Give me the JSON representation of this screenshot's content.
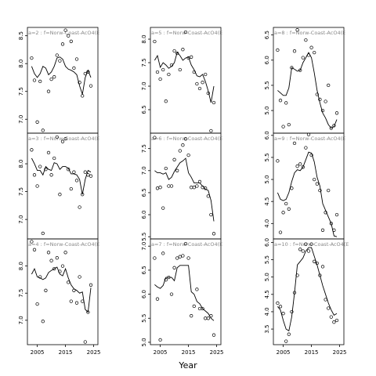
{
  "chart_data": {
    "type": "scatter",
    "figure_xlabel": "Year",
    "x_ticks": [
      2005,
      2015,
      2025
    ],
    "xlim": [
      2001.5,
      2026.5
    ],
    "panels": [
      {
        "label": "a=2 : f=Norw-Coast-AcO4(E",
        "ylim": [
          6.75,
          8.65
        ],
        "yticks": [
          7.0,
          7.5,
          8.0,
          8.5
        ],
        "points": {
          "x": [
            2003,
            2004,
            2005,
            2006,
            2007,
            2009,
            2010,
            2011,
            2012,
            2013,
            2014,
            2015,
            2016,
            2017,
            2018,
            2019,
            2020,
            2021,
            2022,
            2023,
            2024
          ],
          "y": [
            8.1,
            7.7,
            6.95,
            7.68,
            6.8,
            7.5,
            7.72,
            7.76,
            8.15,
            8.05,
            8.35,
            8.6,
            8.5,
            8.4,
            7.92,
            8.08,
            7.66,
            7.42,
            7.82,
            7.85,
            7.6
          ]
        },
        "fit": {
          "x": [
            2003,
            2004,
            2005,
            2006,
            2007,
            2008,
            2009,
            2010,
            2011,
            2012,
            2013,
            2014,
            2015,
            2016,
            2017,
            2018,
            2019,
            2020,
            2021,
            2022,
            2023,
            2024
          ],
          "y": [
            7.95,
            7.82,
            7.75,
            7.82,
            7.95,
            7.92,
            7.8,
            7.85,
            7.95,
            8.1,
            8.12,
            8.08,
            7.95,
            7.9,
            7.88,
            7.85,
            7.8,
            7.6,
            7.45,
            7.75,
            7.88,
            7.75
          ]
        }
      },
      {
        "label": "a=5 : f=Norw-Coast-AcO4(E",
        "ylim": [
          6.0,
          8.25
        ],
        "yticks": [
          6.5,
          7.0,
          7.5,
          8.0
        ],
        "points": {
          "x": [
            2003,
            2004,
            2005,
            2006,
            2007,
            2008,
            2009,
            2010,
            2011,
            2012,
            2013,
            2014,
            2015,
            2016,
            2017,
            2018,
            2019,
            2020,
            2021,
            2022,
            2023,
            2024
          ],
          "y": [
            7.95,
            7.3,
            7.15,
            7.35,
            6.68,
            7.25,
            7.45,
            7.75,
            7.7,
            7.35,
            7.78,
            8.15,
            7.6,
            7.62,
            7.3,
            7.05,
            6.95,
            7.08,
            7.25,
            6.85,
            6.05,
            6.65
          ]
        },
        "fit": {
          "x": [
            2003,
            2004,
            2005,
            2006,
            2007,
            2008,
            2009,
            2010,
            2011,
            2012,
            2013,
            2014,
            2015,
            2016,
            2017,
            2018,
            2019,
            2020,
            2021,
            2022,
            2023,
            2024
          ],
          "y": [
            7.55,
            7.65,
            7.4,
            7.5,
            7.45,
            7.38,
            7.42,
            7.5,
            7.72,
            7.65,
            7.55,
            7.6,
            7.62,
            7.45,
            7.35,
            7.22,
            7.2,
            7.25,
            7.1,
            6.9,
            6.65,
            7.0
          ]
        }
      },
      {
        "label": "a=8 : f=Norw-Coast-AcO4(E",
        "ylim": [
          4.55,
          6.65
        ],
        "yticks": [
          5.0,
          5.5,
          6.0,
          6.5
        ],
        "points": {
          "x": [
            2003,
            2004,
            2005,
            2006,
            2007,
            2008,
            2009,
            2010,
            2011,
            2012,
            2013,
            2014,
            2015,
            2016,
            2017,
            2018,
            2019,
            2020,
            2021,
            2022,
            2023,
            2024
          ],
          "y": [
            6.2,
            5.2,
            4.68,
            5.15,
            4.72,
            5.85,
            6.18,
            6.6,
            5.8,
            6.05,
            6.4,
            6.1,
            6.25,
            6.15,
            5.32,
            5.22,
            5.0,
            5.18,
            5.5,
            4.65,
            4.7,
            4.95
          ]
        },
        "fit": {
          "x": [
            2003,
            2004,
            2005,
            2006,
            2007,
            2008,
            2009,
            2010,
            2011,
            2012,
            2013,
            2014,
            2015,
            2016,
            2017,
            2018,
            2019,
            2020,
            2021,
            2022,
            2023,
            2024
          ],
          "y": [
            5.4,
            5.35,
            5.3,
            5.3,
            5.45,
            5.85,
            5.82,
            5.78,
            5.8,
            5.95,
            6.05,
            6.15,
            6.05,
            5.75,
            5.4,
            5.15,
            4.95,
            4.85,
            4.72,
            4.65,
            4.68,
            4.82
          ]
        }
      },
      {
        "label": "a=3 : f=Norw-Coast-AcO4(E",
        "ylim": [
          6.65,
          8.55
        ],
        "yticks": [
          7.0,
          7.5,
          8.0
        ],
        "points": {
          "x": [
            2003,
            2004,
            2005,
            2006,
            2007,
            2008,
            2009,
            2010,
            2011,
            2012,
            2013,
            2014,
            2015,
            2016,
            2017,
            2018,
            2019,
            2020,
            2021,
            2022,
            2023,
            2024
          ],
          "y": [
            8.25,
            7.8,
            7.6,
            7.95,
            6.75,
            7.9,
            8.2,
            7.8,
            8.1,
            8.48,
            7.45,
            8.4,
            8.45,
            7.9,
            7.55,
            7.85,
            7.7,
            7.22,
            7.45,
            7.85,
            7.8,
            7.78
          ]
        },
        "fit": {
          "x": [
            2003,
            2004,
            2005,
            2006,
            2007,
            2008,
            2009,
            2010,
            2011,
            2012,
            2013,
            2014,
            2015,
            2016,
            2017,
            2018,
            2019,
            2020,
            2021,
            2022,
            2023,
            2024
          ],
          "y": [
            8.1,
            8.0,
            7.88,
            7.88,
            7.8,
            7.95,
            7.9,
            7.88,
            8.02,
            8.0,
            7.9,
            7.95,
            7.95,
            7.92,
            7.82,
            7.82,
            7.8,
            7.72,
            7.45,
            7.72,
            7.88,
            7.85
          ]
        }
      },
      {
        "label": "a=6 : f=Norw-Coast-AcO4(E",
        "ylim": [
          5.45,
          7.85
        ],
        "yticks": [
          5.5,
          6.0,
          6.5,
          7.0,
          7.5
        ],
        "points": {
          "x": [
            2003,
            2004,
            2005,
            2006,
            2007,
            2008,
            2009,
            2010,
            2011,
            2012,
            2013,
            2014,
            2015,
            2016,
            2017,
            2018,
            2019,
            2020,
            2021,
            2022,
            2023,
            2024
          ],
          "y": [
            7.75,
            6.6,
            6.62,
            6.15,
            7.05,
            6.65,
            6.65,
            7.25,
            7.0,
            7.45,
            7.58,
            7.72,
            7.35,
            6.62,
            6.62,
            6.65,
            6.75,
            6.62,
            6.6,
            6.42,
            6.0,
            5.57
          ]
        },
        "fit": {
          "x": [
            2003,
            2004,
            2005,
            2006,
            2007,
            2008,
            2009,
            2010,
            2011,
            2012,
            2013,
            2014,
            2015,
            2016,
            2017,
            2018,
            2019,
            2020,
            2021,
            2022,
            2023,
            2024
          ],
          "y": [
            7.0,
            6.95,
            6.95,
            6.92,
            6.95,
            6.8,
            6.85,
            6.98,
            7.08,
            7.18,
            7.22,
            7.28,
            6.95,
            6.85,
            6.72,
            6.72,
            6.72,
            6.65,
            6.58,
            6.55,
            6.32,
            5.85
          ]
        }
      },
      {
        "label": "a=9 : f=Norw-Coast-AcO4(E",
        "ylim": [
          3.65,
          6.05
        ],
        "yticks": [
          4.0,
          4.5,
          5.0,
          5.5,
          6.0
        ],
        "points": {
          "x": [
            2003,
            2004,
            2005,
            2006,
            2007,
            2008,
            2009,
            2010,
            2011,
            2012,
            2013,
            2014,
            2015,
            2016,
            2017,
            2018,
            2019,
            2020,
            2021,
            2022,
            2023,
            2024
          ],
          "y": [
            5.42,
            3.8,
            4.25,
            4.45,
            4.33,
            4.8,
            5.82,
            5.3,
            5.35,
            5.28,
            5.72,
            6.02,
            5.55,
            5.0,
            4.9,
            4.75,
            3.85,
            4.25,
            4.75,
            4.0,
            3.85,
            4.2
          ]
        },
        "fit": {
          "x": [
            2003,
            2004,
            2005,
            2006,
            2007,
            2008,
            2009,
            2010,
            2011,
            2012,
            2013,
            2014,
            2015,
            2016,
            2017,
            2018,
            2019,
            2020,
            2021,
            2022,
            2023,
            2024
          ],
          "y": [
            4.7,
            4.55,
            4.52,
            4.55,
            4.7,
            4.95,
            5.15,
            5.22,
            5.2,
            5.28,
            5.45,
            5.62,
            5.6,
            5.4,
            5.05,
            4.85,
            4.45,
            4.3,
            4.15,
            4.0,
            3.72,
            3.7
          ]
        }
      },
      {
        "label": "a=4 : f=Norw-Coast-AcO4(E",
        "ylim": [
          6.55,
          8.5
        ],
        "yticks": [
          7.0,
          7.5,
          8.0
        ],
        "points": {
          "x": [
            2003,
            2004,
            2005,
            2006,
            2007,
            2008,
            2009,
            2010,
            2011,
            2012,
            2013,
            2014,
            2015,
            2016,
            2017,
            2018,
            2019,
            2020,
            2021,
            2022,
            2023,
            2024
          ],
          "y": [
            8.45,
            8.3,
            7.3,
            7.8,
            6.98,
            7.55,
            8.25,
            8.1,
            7.95,
            8.15,
            7.9,
            8.0,
            8.25,
            7.7,
            7.35,
            7.55,
            7.32,
            7.8,
            7.35,
            6.6,
            7.15,
            7.65
          ]
        },
        "fit": {
          "x": [
            2003,
            2004,
            2005,
            2006,
            2007,
            2008,
            2009,
            2010,
            2011,
            2012,
            2013,
            2014,
            2015,
            2016,
            2017,
            2018,
            2019,
            2020,
            2021,
            2022,
            2023,
            2024
          ],
          "y": [
            7.85,
            7.95,
            7.8,
            7.78,
            7.75,
            7.78,
            7.88,
            7.92,
            7.95,
            7.98,
            7.85,
            7.82,
            7.95,
            7.78,
            7.65,
            7.58,
            7.55,
            7.5,
            7.52,
            7.2,
            7.15,
            7.6
          ]
        }
      },
      {
        "label": "a=7 : f=Norw-Coast-AcO4(E",
        "ylim": [
          4.95,
          7.15
        ],
        "yticks": [
          5.0,
          5.5,
          6.0,
          6.5,
          7.0
        ],
        "points": {
          "x": [
            2003,
            2004,
            2005,
            2006,
            2007,
            2008,
            2009,
            2010,
            2011,
            2012,
            2013,
            2014,
            2015,
            2016,
            2017,
            2018,
            2019,
            2020,
            2021,
            2022,
            2023,
            2024
          ],
          "y": [
            6.75,
            5.9,
            5.05,
            6.85,
            6.3,
            6.35,
            6.0,
            6.55,
            6.75,
            6.78,
            6.8,
            7.05,
            6.75,
            5.55,
            5.75,
            6.1,
            5.7,
            5.7,
            5.5,
            5.5,
            5.55,
            5.15
          ]
        },
        "fit": {
          "x": [
            2003,
            2004,
            2005,
            2006,
            2007,
            2008,
            2009,
            2010,
            2011,
            2012,
            2013,
            2014,
            2015,
            2016,
            2017,
            2018,
            2019,
            2020,
            2021,
            2022,
            2023,
            2024
          ],
          "y": [
            6.2,
            6.15,
            6.12,
            6.18,
            6.35,
            6.35,
            6.35,
            6.28,
            6.55,
            6.6,
            6.6,
            6.6,
            6.6,
            6.05,
            6.0,
            5.85,
            5.8,
            5.7,
            5.65,
            5.6,
            5.5,
            5.45
          ]
        }
      },
      {
        "label": "a=10 : f=Norw-Coast-AcO4(E",
        "ylim": [
          3.05,
          6.1
        ],
        "yticks": [
          3.5,
          4.0,
          4.5,
          5.0,
          5.5,
          6.0
        ],
        "points": {
          "x": [
            2003,
            2004,
            2005,
            2006,
            2007,
            2008,
            2009,
            2010,
            2011,
            2012,
            2013,
            2014,
            2015,
            2016,
            2017,
            2018,
            2019,
            2020,
            2021,
            2022,
            2023,
            2024
          ],
          "y": [
            4.25,
            4.15,
            3.95,
            3.15,
            3.35,
            4.0,
            4.55,
            5.05,
            5.8,
            5.75,
            5.95,
            5.75,
            5.95,
            5.45,
            5.4,
            5.05,
            5.3,
            4.35,
            4.1,
            3.85,
            3.7,
            3.75
          ]
        },
        "fit": {
          "x": [
            2003,
            2004,
            2005,
            2006,
            2007,
            2008,
            2009,
            2010,
            2011,
            2012,
            2013,
            2014,
            2015,
            2016,
            2017,
            2018,
            2019,
            2020,
            2021,
            2022,
            2023,
            2024
          ],
          "y": [
            4.15,
            4.05,
            3.75,
            3.5,
            3.45,
            3.85,
            4.55,
            5.35,
            5.45,
            5.55,
            5.75,
            5.85,
            5.85,
            5.6,
            5.35,
            5.05,
            4.75,
            4.5,
            4.25,
            4.05,
            3.9,
            3.95
          ]
        }
      }
    ]
  }
}
